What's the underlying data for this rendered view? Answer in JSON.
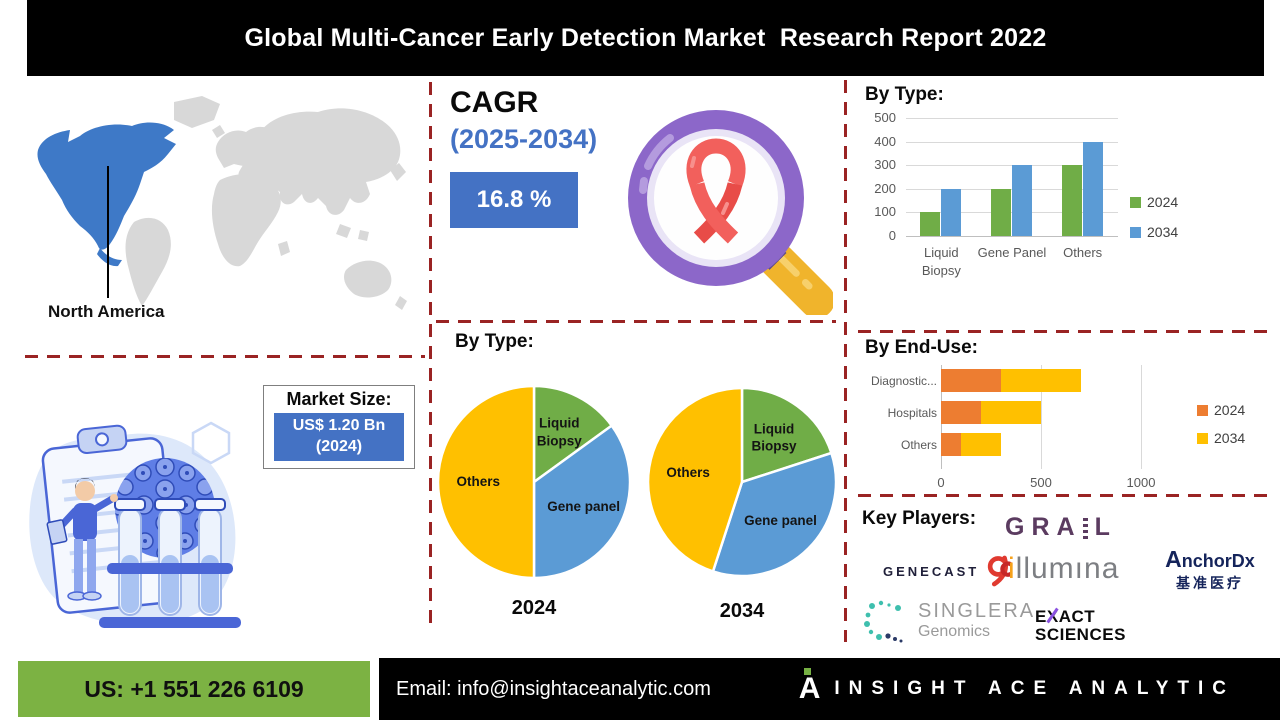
{
  "header": {
    "title": "Global Multi-Cancer Early Detection Market  Research Report 2022"
  },
  "map_section": {
    "region_label": "North America"
  },
  "cagr": {
    "label": "CAGR",
    "period": "(2025-2034)",
    "value": "16.8 %"
  },
  "market_size": {
    "label": "Market Size:",
    "value_line1": "US$ 1.20 Bn",
    "value_line2": "(2024)"
  },
  "pie_section": {
    "title": "By Type:"
  },
  "key_players": {
    "title": "Key Players:",
    "grail": {
      "part1": "GRA",
      "part2": "L"
    },
    "genecast": {
      "text": "GENECAST"
    },
    "illumina": {
      "first": "i",
      "rest": "llumına"
    },
    "anchordx": {
      "first": "A",
      "rest": "nchorDx",
      "sub": "基准医疗"
    },
    "singlera": {
      "line1": "SINGLERA",
      "line2": "Genomics"
    },
    "exact": {
      "x_line1_pre": "E",
      "x_letter": "X",
      "x_line1_post": "ACT",
      "line2": "SCIENCES"
    }
  },
  "footer": {
    "phone": "US: +1 551 226 6109",
    "email": "Email: info@insightaceanalytic.com",
    "brand": "INSIGHT ACE ANALYTIC",
    "brand_mark_letter": "A"
  },
  "colors": {
    "accent_blue": "#4472C4",
    "series_green": "#70AD47",
    "series_blue": "#5B9BD5",
    "series_yellow": "#FFC000",
    "series_orange": "#ED7D31",
    "divider_red": "#9A2323",
    "footer_green": "#7CB243",
    "map_highlight": "#3E79C7",
    "map_land": "#D8D8D8"
  },
  "icons": {
    "magnifier": "magnifier-cancer-ribbon-icon",
    "world_map": "world-map-north-america-highlight",
    "illustration": "lab-test-tubes-illustration",
    "genecast_mark": "genecast-gc-monogram-icon",
    "singlera_mark": "singlera-dotted-ring-icon",
    "brand_mark": "insight-ace-a-mark-icon"
  },
  "chart_data": [
    {
      "id": "by-type-bar",
      "type": "bar",
      "title": "By Type:",
      "categories": [
        "Liquid Biopsy",
        "Gene Panel",
        "Others"
      ],
      "series": [
        {
          "name": "2024",
          "color": "#70AD47",
          "values": [
            100,
            200,
            300
          ]
        },
        {
          "name": "2034",
          "color": "#5B9BD5",
          "values": [
            200,
            300,
            400
          ]
        }
      ],
      "ylim": [
        0,
        500
      ],
      "yticks": [
        0,
        100,
        200,
        300,
        400,
        500
      ],
      "grid": true,
      "legend_position": "right"
    },
    {
      "id": "by-type-pie-2024",
      "type": "pie",
      "year_label": "2024",
      "slices": [
        {
          "label": "Liquid Biopsy",
          "value": 15,
          "color": "#70AD47"
        },
        {
          "label": "Gene panel",
          "value": 35,
          "color": "#5B9BD5"
        },
        {
          "label": "Others",
          "value": 50,
          "color": "#FFC000"
        }
      ],
      "start_angle": 0
    },
    {
      "id": "by-type-pie-2034",
      "type": "pie",
      "year_label": "2034",
      "slices": [
        {
          "label": "Liquid Biopsy",
          "value": 20,
          "color": "#70AD47"
        },
        {
          "label": "Gene panel",
          "value": 35,
          "color": "#5B9BD5"
        },
        {
          "label": "Others",
          "value": 45,
          "color": "#FFC000"
        }
      ],
      "start_angle": 0
    },
    {
      "id": "by-end-use",
      "type": "bar-horizontal-stacked",
      "title": "By End-Use:",
      "categories": [
        "Diagnostic...",
        "Hospitals",
        "Others"
      ],
      "series": [
        {
          "name": "2024",
          "color": "#ED7D31",
          "values": [
            300,
            200,
            100
          ]
        },
        {
          "name": "2034",
          "color": "#FFC000",
          "values": [
            400,
            300,
            200
          ]
        }
      ],
      "xlim": [
        0,
        1500
      ],
      "xticks": [
        0,
        500,
        1000
      ],
      "grid": true,
      "legend_position": "right"
    }
  ]
}
